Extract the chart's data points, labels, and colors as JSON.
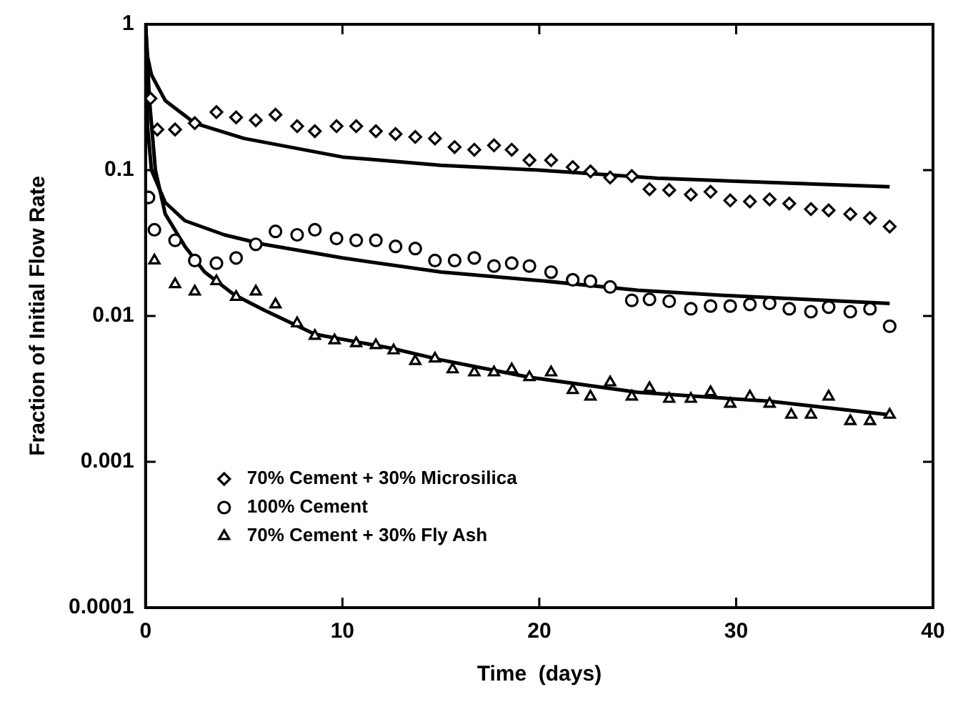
{
  "chart_data": {
    "type": "scatter",
    "xlabel": "Time  (days)",
    "ylabel": "Fraction of Initial Flow Rate",
    "log": "y",
    "xlim": [
      0,
      40
    ],
    "xticks": [
      0,
      10,
      20,
      30,
      40
    ],
    "ylim": [
      0.0001,
      1
    ],
    "yticks": [
      0.0001,
      0.001,
      0.01,
      0.1,
      1
    ],
    "grid": false,
    "legend": "bottom left",
    "series": [
      {
        "name": "70% Cement + 30% Microsilica",
        "color": "#000000",
        "marker": "diamond",
        "x": [
          0.25,
          0.6,
          1.5,
          2.5,
          3.6,
          4.6,
          5.6,
          6.6,
          7.7,
          8.6,
          9.7,
          10.7,
          11.7,
          12.7,
          13.7,
          14.7,
          15.7,
          16.7,
          17.7,
          18.6,
          19.5,
          20.6,
          21.7,
          22.6,
          23.6,
          24.7,
          25.6,
          26.6,
          27.7,
          28.7,
          29.7,
          30.7,
          31.7,
          32.7,
          33.8,
          34.7,
          35.8,
          36.8,
          37.8
        ],
        "values": [
          0.31,
          0.19,
          0.19,
          0.21,
          0.25,
          0.23,
          0.22,
          0.24,
          0.2,
          0.185,
          0.2,
          0.2,
          0.185,
          0.177,
          0.169,
          0.165,
          0.144,
          0.138,
          0.148,
          0.138,
          0.117,
          0.117,
          0.105,
          0.098,
          0.089,
          0.091,
          0.074,
          0.073,
          0.068,
          0.071,
          0.062,
          0.061,
          0.063,
          0.059,
          0.054,
          0.053,
          0.05,
          0.047,
          0.041
        ]
      },
      {
        "name": "100% Cement",
        "color": "#000000",
        "marker": "circle",
        "x": [
          0.15,
          0.45,
          1.5,
          2.5,
          3.6,
          4.6,
          5.6,
          6.6,
          7.7,
          8.6,
          9.7,
          10.7,
          11.7,
          12.7,
          13.7,
          14.7,
          15.7,
          16.7,
          17.7,
          18.6,
          19.5,
          20.6,
          21.7,
          22.6,
          23.6,
          24.7,
          25.6,
          26.6,
          27.7,
          28.7,
          29.7,
          30.7,
          31.7,
          32.7,
          33.8,
          34.7,
          35.8,
          36.8,
          37.8
        ],
        "values": [
          0.065,
          0.039,
          0.033,
          0.024,
          0.023,
          0.025,
          0.031,
          0.038,
          0.036,
          0.039,
          0.034,
          0.033,
          0.033,
          0.03,
          0.029,
          0.024,
          0.024,
          0.025,
          0.022,
          0.023,
          0.022,
          0.02,
          0.0177,
          0.0173,
          0.0158,
          0.0128,
          0.013,
          0.0126,
          0.0112,
          0.0117,
          0.0117,
          0.012,
          0.0122,
          0.0112,
          0.0107,
          0.0115,
          0.0107,
          0.0112,
          0.0085
        ]
      },
      {
        "name": "70% Cement + 30% Fly Ash",
        "color": "#000000",
        "marker": "triangle",
        "x": [
          0.45,
          1.5,
          2.5,
          3.6,
          4.6,
          5.6,
          6.6,
          7.7,
          8.6,
          9.6,
          10.7,
          11.7,
          12.6,
          13.7,
          14.7,
          15.6,
          16.7,
          17.7,
          18.6,
          19.5,
          20.6,
          21.7,
          22.6,
          23.6,
          24.7,
          25.6,
          26.6,
          27.7,
          28.7,
          29.7,
          30.7,
          31.7,
          32.8,
          33.8,
          34.7,
          35.8,
          36.8,
          37.8
        ],
        "values": [
          0.024,
          0.0165,
          0.0147,
          0.0173,
          0.0135,
          0.0147,
          0.012,
          0.0089,
          0.0073,
          0.0068,
          0.0065,
          0.0063,
          0.0058,
          0.0049,
          0.0051,
          0.0043,
          0.0041,
          0.0041,
          0.0043,
          0.0038,
          0.0041,
          0.0031,
          0.0028,
          0.0035,
          0.0028,
          0.0032,
          0.0027,
          0.0027,
          0.003,
          0.0025,
          0.0028,
          0.0025,
          0.0021,
          0.0021,
          0.0028,
          0.0019,
          0.0019,
          0.0021
        ]
      },
      {
        "type": "line",
        "color": "#000000",
        "marker": "none",
        "x": [
          0,
          0.1,
          0.3,
          1,
          2.5,
          5,
          10,
          15,
          20,
          26,
          32,
          37.8
        ],
        "values": [
          1,
          0.6,
          0.45,
          0.3,
          0.21,
          0.165,
          0.123,
          0.108,
          0.1,
          0.088,
          0.082,
          0.077
        ]
      },
      {
        "type": "line",
        "color": "#000000",
        "marker": "none",
        "x": [
          0,
          0.1,
          0.3,
          1,
          2,
          4,
          6,
          10,
          15,
          20,
          25,
          30,
          37.8
        ],
        "values": [
          1,
          0.2,
          0.1,
          0.06,
          0.045,
          0.036,
          0.031,
          0.025,
          0.02,
          0.0175,
          0.015,
          0.0137,
          0.0122
        ]
      },
      {
        "type": "line",
        "color": "#000000",
        "marker": "none",
        "x": [
          0,
          0.2,
          0.5,
          1,
          2,
          3,
          4.5,
          6,
          8.6,
          12.5,
          15,
          19.5,
          25,
          31.7,
          37.8
        ],
        "values": [
          1,
          0.3,
          0.1,
          0.05,
          0.03,
          0.02,
          0.014,
          0.011,
          0.0075,
          0.006,
          0.005,
          0.0038,
          0.003,
          0.0026,
          0.0021
        ]
      }
    ]
  }
}
